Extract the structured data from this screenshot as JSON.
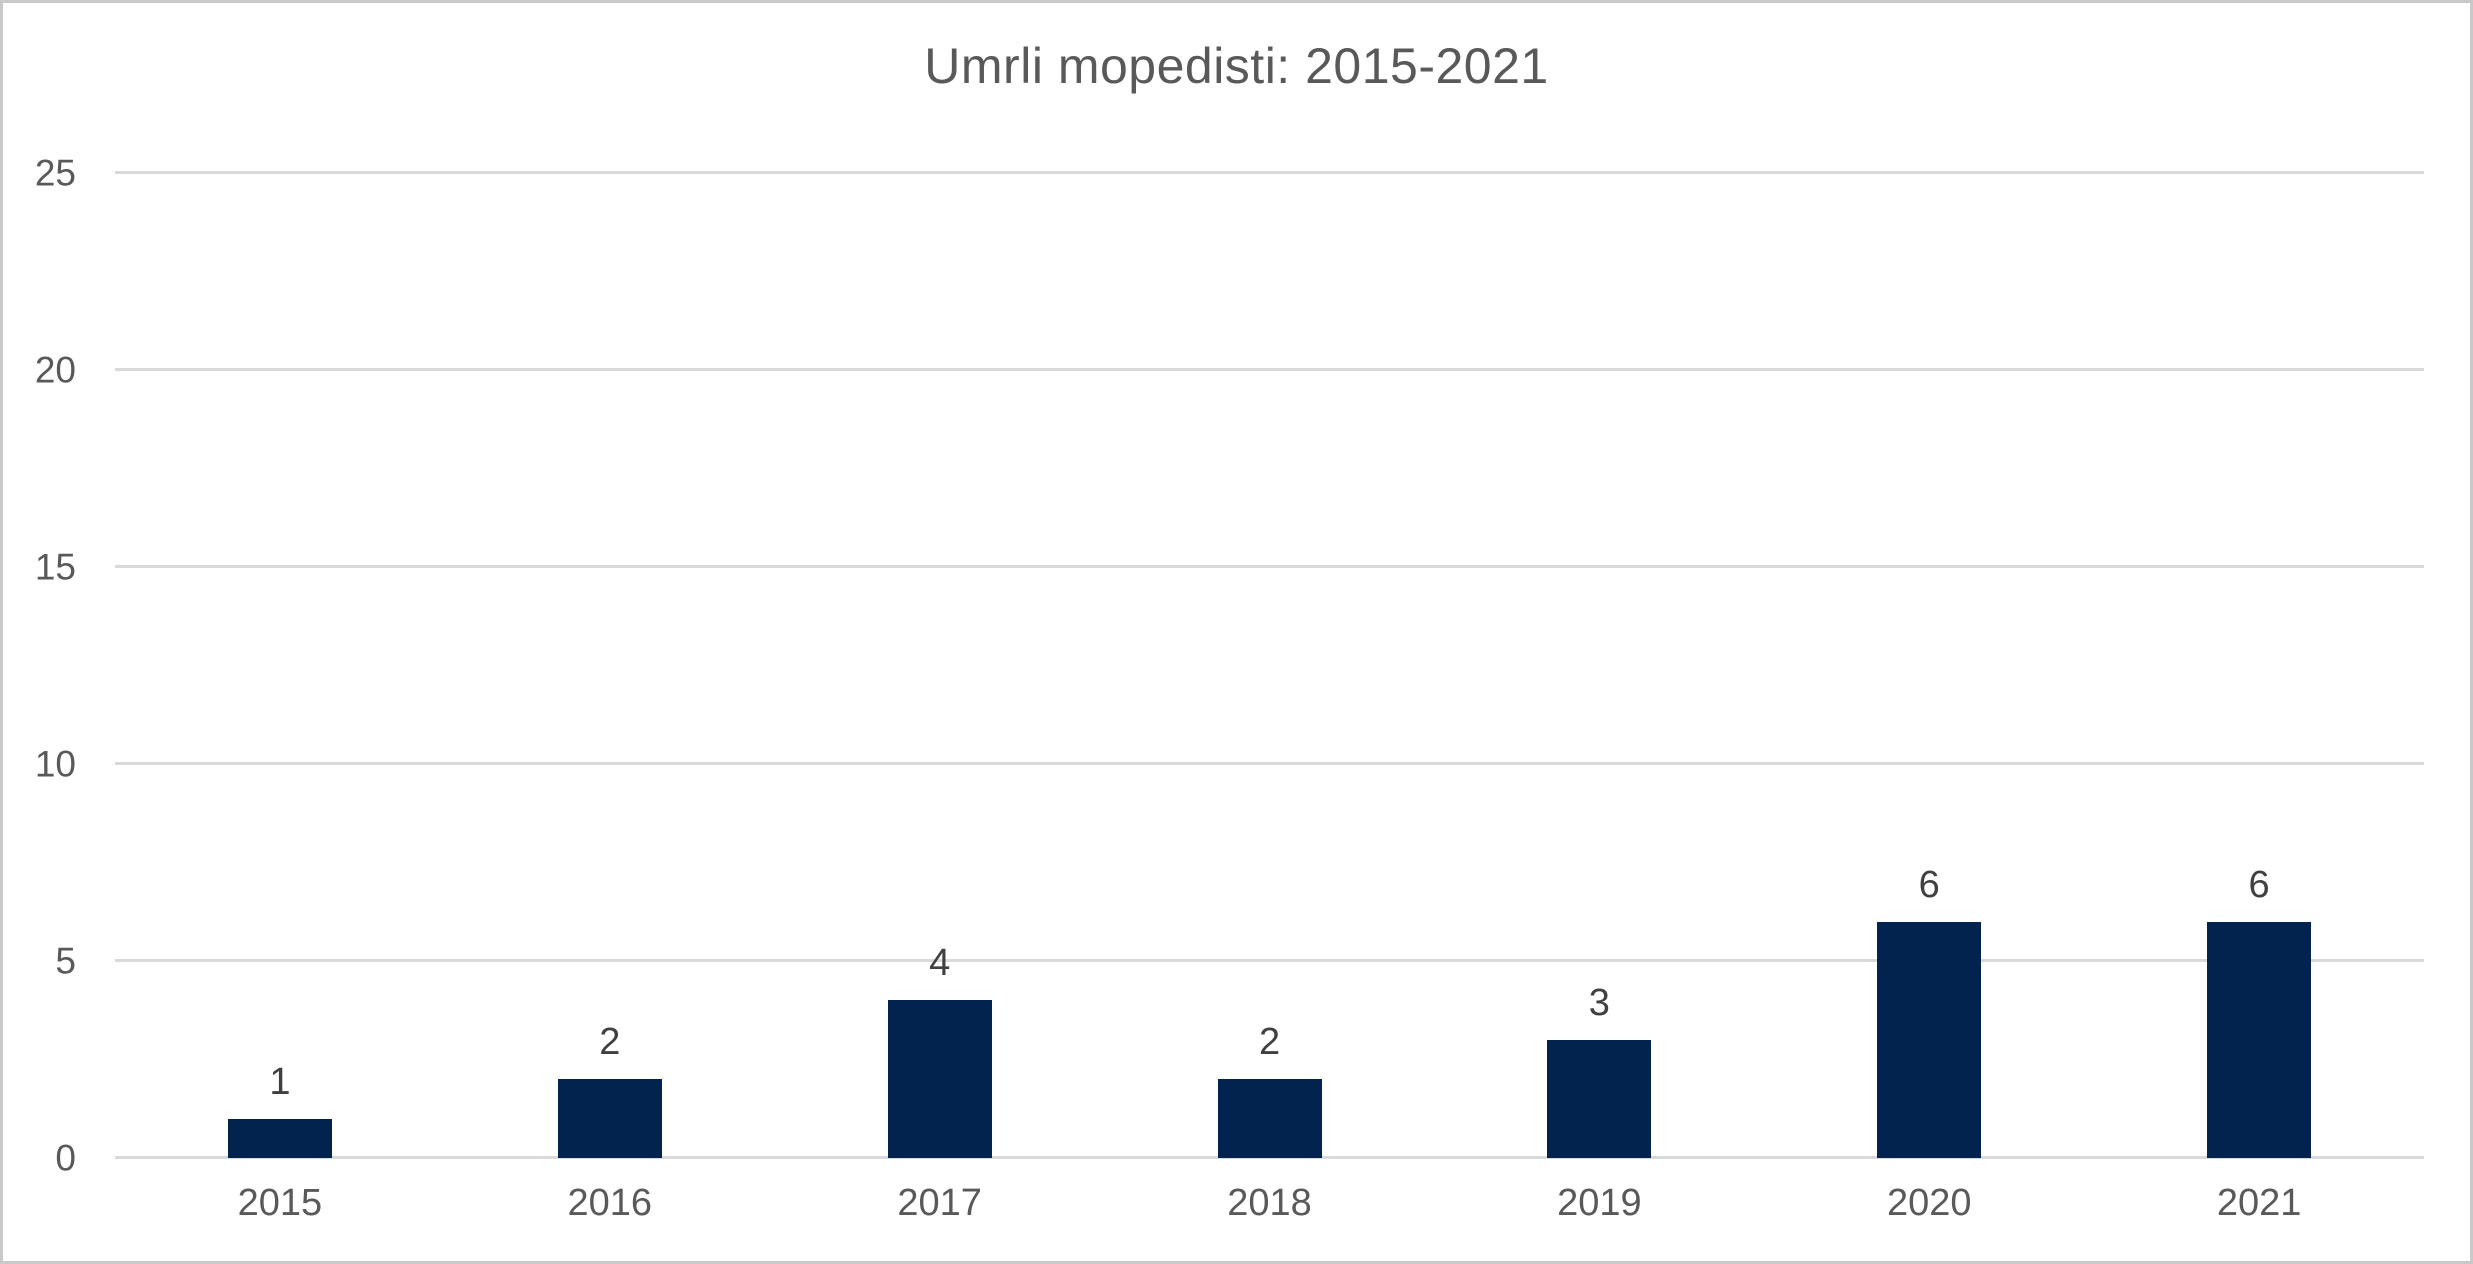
{
  "chart_data": {
    "type": "bar",
    "title": "Umrli mopedisti: 2015-2021",
    "categories": [
      "2015",
      "2016",
      "2017",
      "2018",
      "2019",
      "2020",
      "2021"
    ],
    "values": [
      1,
      2,
      4,
      2,
      3,
      6,
      6
    ],
    "data_labels": [
      "1",
      "2",
      "4",
      "2",
      "3",
      "6",
      "6"
    ],
    "xlabel": "",
    "ylabel": "",
    "ylim": [
      0,
      25
    ],
    "yticks": [
      0,
      5,
      10,
      15,
      20,
      25
    ],
    "grid": "horizontal",
    "legend_position": "none",
    "data_labels_shown": true,
    "colors": {
      "bar": "#02234E",
      "gridline": "#D9D9D9",
      "tick_label": "#595959",
      "x_label": "#595959",
      "data_label": "#404040",
      "title": "#595959",
      "frame_border": "#C9C9C9",
      "background": "#FFFFFF"
    }
  }
}
